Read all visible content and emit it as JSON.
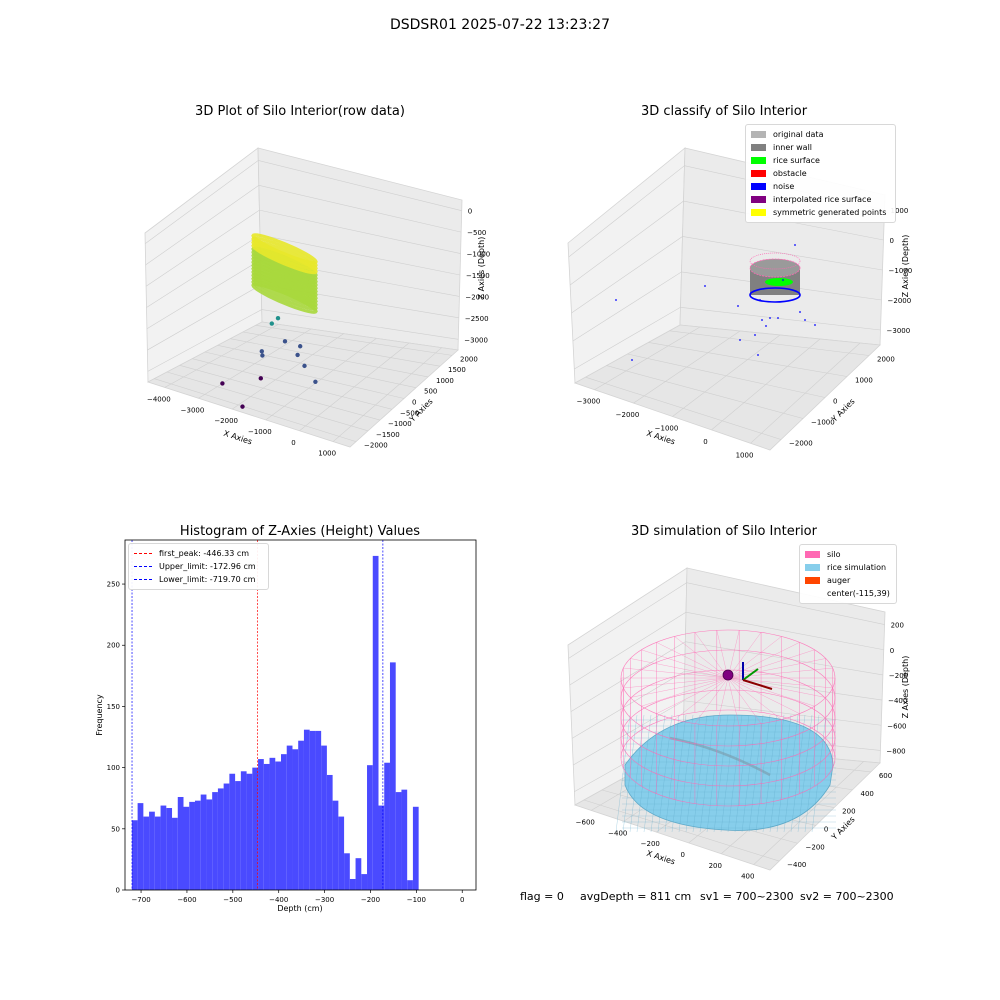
{
  "figure": {
    "title": "DSDSR01 2025-07-22 13:23:27"
  },
  "footer": {
    "flag": "flag = 0",
    "avg_depth": "avgDepth = 811 cm",
    "sv1": "sv1 = 700~2300",
    "sv2": "sv2 = 700~2300"
  },
  "chart_data": [
    {
      "type": "scatter",
      "subtype": "3d",
      "title": "3D Plot of Silo Interior(row data)",
      "xlabel": "X Axies",
      "ylabel": "Y Axies",
      "zlabel": "Z Axies (Depth)",
      "x_ticks": [
        "−4000",
        "−3000",
        "−2000",
        "−1000",
        "0",
        "1000"
      ],
      "y_ticks": [
        "−2000",
        "−1500",
        "−1000",
        "−500",
        "0",
        "500",
        "1000",
        "1500",
        "2000"
      ],
      "z_ticks": [
        "0",
        "−500",
        "−1000",
        "−1500",
        "−2000",
        "−2500",
        "−3000"
      ],
      "colormap": "viridis",
      "scatter_points": [
        {
          "x": -3750,
          "y": -2000,
          "z": -3050
        },
        {
          "x": -3400,
          "y": -1200,
          "z": -2900
        },
        {
          "x": -1800,
          "y": -800,
          "z": -2750
        },
        {
          "x": -1400,
          "y": -500,
          "z": -2400
        },
        {
          "x": -1300,
          "y": -400,
          "z": -2350
        },
        {
          "x": -900,
          "y": -1400,
          "z": -2450
        },
        {
          "x": -750,
          "y": -1000,
          "z": -2300
        },
        {
          "x": -600,
          "y": -700,
          "z": -2200
        },
        {
          "x": -500,
          "y": -300,
          "z": -2100
        },
        {
          "x": -300,
          "y": 200,
          "z": -1950
        },
        {
          "x": 0,
          "y": 300,
          "z": -1850
        },
        {
          "x": 300,
          "y": 0,
          "z": -2200
        }
      ],
      "point_cloud": {
        "center_x": -115,
        "center_y": 39,
        "radius": 600,
        "z_top": -500,
        "z_bottom": -1400
      }
    },
    {
      "type": "scatter",
      "subtype": "3d",
      "title": "3D classify of Silo Interior",
      "xlabel": "X Axies",
      "ylabel": "Y Axies",
      "zlabel": "Z Axies (Depth)",
      "x_ticks": [
        "−3000",
        "−2000",
        "−1000",
        "0",
        "1000"
      ],
      "y_ticks": [
        "−2000",
        "−1000",
        "0",
        "1000",
        "2000"
      ],
      "z_ticks": [
        "1000",
        "0",
        "−1000",
        "−2000",
        "−3000"
      ],
      "legend": {
        "position": "upper right",
        "items": [
          {
            "label": "original data",
            "color": "#b4b4b4"
          },
          {
            "label": "inner wall",
            "color": "#808080"
          },
          {
            "label": "rice surface",
            "color": "#00ff00"
          },
          {
            "label": "obstacle",
            "color": "#ff0000"
          },
          {
            "label": "noise",
            "color": "#0000ff"
          },
          {
            "label": "interpolated rice surface",
            "color": "#800080"
          },
          {
            "label": "symmetric generated points",
            "color": "#ffff00"
          }
        ]
      }
    },
    {
      "type": "bar",
      "subtype": "histogram",
      "title": "Histogram of Z-Axies (Height) Values",
      "xlabel": "Depth (cm)",
      "ylabel": "Frequency",
      "xlim": [
        -735,
        30
      ],
      "ylim": [
        0,
        286
      ],
      "x_ticks": [
        -700,
        -600,
        -500,
        -400,
        -300,
        -200,
        -100,
        0
      ],
      "y_ticks": [
        0,
        50,
        100,
        150,
        200,
        250
      ],
      "bar_color": "#4a4aff",
      "bin_start": -720,
      "bin_width": 12.5,
      "values": [
        57,
        71,
        60,
        64,
        60,
        69,
        67,
        59,
        76,
        68,
        72,
        73,
        78,
        74,
        80,
        83,
        87,
        95,
        89,
        97,
        95,
        100,
        107,
        103,
        108,
        105,
        111,
        118,
        115,
        122,
        131,
        130,
        130,
        118,
        94,
        73,
        60,
        30,
        9,
        26,
        13,
        102,
        273,
        69,
        104,
        186,
        80,
        82,
        8,
        68
      ],
      "vlines": [
        {
          "label": "first_peak: -446.33 cm",
          "x": -446.33,
          "color": "#ff0000"
        },
        {
          "label": "Upper_limit: -172.96 cm",
          "x": -172.96,
          "color": "#0000ff"
        },
        {
          "label": "Lower_limit: -719.70 cm",
          "x": -719.7,
          "color": "#0000ff"
        }
      ],
      "legend": {
        "position": "upper left"
      }
    },
    {
      "type": "scatter",
      "subtype": "3d-surface",
      "title": "3D simulation of Silo Interior",
      "xlabel": "X Axies",
      "ylabel": "Y Axies",
      "zlabel": "Z Axies (Depth)",
      "x_ticks": [
        "−600",
        "−400",
        "−200",
        "0",
        "200",
        "400"
      ],
      "y_ticks": [
        "−400",
        "−200",
        "0",
        "200",
        "400",
        "600"
      ],
      "z_ticks": [
        "200",
        "0",
        "−200",
        "−400",
        "−600",
        "−800"
      ],
      "legend": {
        "position": "upper right",
        "items": [
          {
            "label": "silo",
            "color": "#ff69b4"
          },
          {
            "label": "rice simulation",
            "color": "#87ceeb"
          },
          {
            "label": "auger",
            "color": "#ff4500"
          },
          {
            "label": "center(-115,39)",
            "color": "none"
          }
        ]
      }
    }
  ]
}
